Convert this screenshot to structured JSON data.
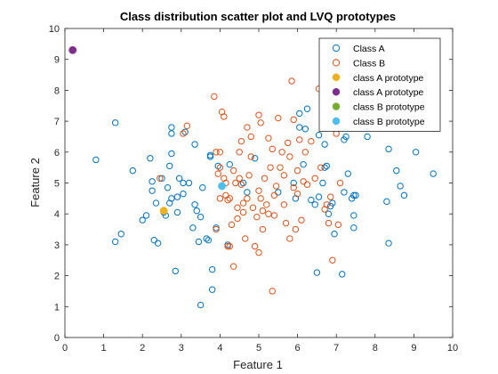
{
  "chart_data": {
    "type": "scatter",
    "title": "Class distribution scatter plot and LVQ prototypes",
    "xlabel": "Feature 1",
    "ylabel": "Feature 2",
    "xlim": [
      0,
      10
    ],
    "ylim": [
      0,
      10
    ],
    "xticks": [
      "0",
      "1",
      "2",
      "3",
      "4",
      "5",
      "6",
      "7",
      "8",
      "9",
      "10"
    ],
    "yticks": [
      "0",
      "1",
      "2",
      "3",
      "4",
      "5",
      "6",
      "7",
      "8",
      "9",
      "10"
    ],
    "grid": false,
    "legend_position": "top-right",
    "series": [
      {
        "name": "Class A",
        "marker": "open-circle",
        "color": "#0072BD",
        "points": [
          [
            0.8,
            5.75
          ],
          [
            1.3,
            6.95
          ],
          [
            1.3,
            3.1
          ],
          [
            1.45,
            3.35
          ],
          [
            1.75,
            5.4
          ],
          [
            2.0,
            3.8
          ],
          [
            2.1,
            3.95
          ],
          [
            2.2,
            5.8
          ],
          [
            2.25,
            4.75
          ],
          [
            2.25,
            5.05
          ],
          [
            2.3,
            3.15
          ],
          [
            2.35,
            4.35
          ],
          [
            2.4,
            3.05
          ],
          [
            2.5,
            5.15
          ],
          [
            2.55,
            4.05
          ],
          [
            2.6,
            3.95
          ],
          [
            2.65,
            4.85
          ],
          [
            2.7,
            5.55
          ],
          [
            2.7,
            4.35
          ],
          [
            2.75,
            4.5
          ],
          [
            2.75,
            5.95
          ],
          [
            2.75,
            6.6
          ],
          [
            2.75,
            6.8
          ],
          [
            2.85,
            2.15
          ],
          [
            2.9,
            4.05
          ],
          [
            2.9,
            4.55
          ],
          [
            2.95,
            5.15
          ],
          [
            3.05,
            4.65
          ],
          [
            3.05,
            5.0
          ],
          [
            3.1,
            6.65
          ],
          [
            3.2,
            5.0
          ],
          [
            3.3,
            3.55
          ],
          [
            3.35,
            4.3
          ],
          [
            3.35,
            6.25
          ],
          [
            3.4,
            4.1
          ],
          [
            3.45,
            3.1
          ],
          [
            3.5,
            3.9
          ],
          [
            3.5,
            1.05
          ],
          [
            3.55,
            4.85
          ],
          [
            3.65,
            3.2
          ],
          [
            3.7,
            3.15
          ],
          [
            3.75,
            5.85
          ],
          [
            3.75,
            5.9
          ],
          [
            3.8,
            1.55
          ],
          [
            3.8,
            2.2
          ],
          [
            3.9,
            3.55
          ],
          [
            3.95,
            5.55
          ],
          [
            4.2,
            3.0
          ],
          [
            4.25,
            5.6
          ],
          [
            4.6,
            5.0
          ],
          [
            4.7,
            4.7
          ],
          [
            4.9,
            5.8
          ],
          [
            5.5,
            4.7
          ],
          [
            5.9,
            5.0
          ],
          [
            5.95,
            4.5
          ],
          [
            6.05,
            6.8
          ],
          [
            6.05,
            7.25
          ],
          [
            6.15,
            5.6
          ],
          [
            6.2,
            6.75
          ],
          [
            6.25,
            7.4
          ],
          [
            6.35,
            4.45
          ],
          [
            6.45,
            4.3
          ],
          [
            6.5,
            2.1
          ],
          [
            6.55,
            6.55
          ],
          [
            6.55,
            4.55
          ],
          [
            6.65,
            5.0
          ],
          [
            6.7,
            6.25
          ],
          [
            6.7,
            5.5
          ],
          [
            6.75,
            5.55
          ],
          [
            6.8,
            4.0
          ],
          [
            6.85,
            4.25
          ],
          [
            6.9,
            4.35
          ],
          [
            6.95,
            3.35
          ],
          [
            7.15,
            2.05
          ],
          [
            7.2,
            6.4
          ],
          [
            7.2,
            4.7
          ],
          [
            7.25,
            6.5
          ],
          [
            7.3,
            5.3
          ],
          [
            7.4,
            4.5
          ],
          [
            7.45,
            4.6
          ],
          [
            7.45,
            3.95
          ],
          [
            7.45,
            3.55
          ],
          [
            7.5,
            4.6
          ],
          [
            7.6,
            6.85
          ],
          [
            7.8,
            6.5
          ],
          [
            8.3,
            4.4
          ],
          [
            8.35,
            6.1
          ],
          [
            8.35,
            3.05
          ],
          [
            8.55,
            5.4
          ],
          [
            8.65,
            4.9
          ],
          [
            8.75,
            4.6
          ],
          [
            9.05,
            6.0
          ],
          [
            9.5,
            5.3
          ]
        ]
      },
      {
        "name": "Class B",
        "marker": "open-circle",
        "color": "#D95319",
        "points": [
          [
            2.45,
            5.15
          ],
          [
            3.05,
            6.6
          ],
          [
            3.15,
            6.85
          ],
          [
            3.85,
            7.8
          ],
          [
            3.9,
            3.5
          ],
          [
            3.9,
            6.0
          ],
          [
            3.95,
            5.3
          ],
          [
            4.0,
            4.5
          ],
          [
            4.0,
            5.5
          ],
          [
            4.0,
            6.0
          ],
          [
            4.05,
            7.3
          ],
          [
            4.1,
            7.15
          ],
          [
            4.1,
            5.15
          ],
          [
            4.15,
            5.0
          ],
          [
            4.15,
            4.6
          ],
          [
            4.2,
            4.45
          ],
          [
            4.2,
            2.95
          ],
          [
            4.25,
            2.95
          ],
          [
            4.25,
            4.5
          ],
          [
            4.3,
            3.65
          ],
          [
            4.35,
            2.3
          ],
          [
            4.35,
            5.4
          ],
          [
            4.4,
            5.0
          ],
          [
            4.45,
            3.85
          ],
          [
            4.45,
            4.2
          ],
          [
            4.5,
            5.15
          ],
          [
            4.5,
            6.0
          ],
          [
            4.55,
            4.95
          ],
          [
            4.55,
            6.35
          ],
          [
            4.6,
            4.35
          ],
          [
            4.6,
            4.05
          ],
          [
            4.65,
            3.2
          ],
          [
            4.7,
            4.5
          ],
          [
            4.7,
            6.8
          ],
          [
            4.75,
            5.25
          ],
          [
            4.8,
            5.85
          ],
          [
            4.8,
            6.5
          ],
          [
            4.85,
            4.2
          ],
          [
            4.9,
            2.95
          ],
          [
            4.95,
            3.9
          ],
          [
            5.0,
            7.2
          ],
          [
            5.0,
            4.75
          ],
          [
            5.0,
            2.75
          ],
          [
            5.05,
            6.95
          ],
          [
            5.05,
            4.5
          ],
          [
            5.1,
            3.5
          ],
          [
            5.1,
            4.1
          ],
          [
            5.15,
            5.15
          ],
          [
            5.2,
            4.3
          ],
          [
            5.25,
            6.45
          ],
          [
            5.25,
            4.0
          ],
          [
            5.3,
            5.5
          ],
          [
            5.35,
            1.5
          ],
          [
            5.35,
            6.1
          ],
          [
            5.4,
            4.6
          ],
          [
            5.4,
            3.95
          ],
          [
            5.45,
            4.9
          ],
          [
            5.5,
            7.1
          ],
          [
            5.55,
            5.5
          ],
          [
            5.6,
            6.0
          ],
          [
            5.65,
            4.3
          ],
          [
            5.65,
            5.25
          ],
          [
            5.7,
            3.7
          ],
          [
            5.75,
            6.3
          ],
          [
            5.8,
            5.85
          ],
          [
            5.8,
            3.2
          ],
          [
            5.85,
            8.3
          ],
          [
            5.9,
            4.85
          ],
          [
            5.9,
            7.05
          ],
          [
            5.95,
            3.5
          ],
          [
            6.0,
            4.65
          ],
          [
            6.0,
            5.4
          ],
          [
            6.05,
            6.4
          ],
          [
            6.1,
            3.8
          ],
          [
            6.15,
            5.05
          ],
          [
            6.2,
            6.0
          ],
          [
            6.25,
            4.95
          ],
          [
            6.35,
            6.35
          ],
          [
            6.45,
            5.15
          ],
          [
            6.55,
            8.05
          ],
          [
            6.6,
            5.5
          ],
          [
            6.7,
            4.15
          ],
          [
            6.75,
            4.3
          ],
          [
            6.8,
            3.7
          ],
          [
            6.85,
            4.55
          ],
          [
            6.9,
            2.5
          ],
          [
            7.0,
            6.6
          ],
          [
            7.05,
            3.65
          ],
          [
            7.1,
            5.0
          ]
        ]
      },
      {
        "name": "class A prototype",
        "marker": "filled-circle",
        "color": "#EDB120",
        "points": [
          [
            2.55,
            4.1
          ]
        ]
      },
      {
        "name": "class A prototype",
        "marker": "filled-circle",
        "color": "#7E2F8E",
        "points": [
          [
            0.2,
            9.3
          ]
        ]
      },
      {
        "name": "class B prototype",
        "marker": "filled-circle",
        "color": "#77AC30",
        "points": []
      },
      {
        "name": "class B prototype",
        "marker": "filled-circle",
        "color": "#4DBEEE",
        "points": [
          [
            4.05,
            4.9
          ]
        ]
      }
    ]
  }
}
